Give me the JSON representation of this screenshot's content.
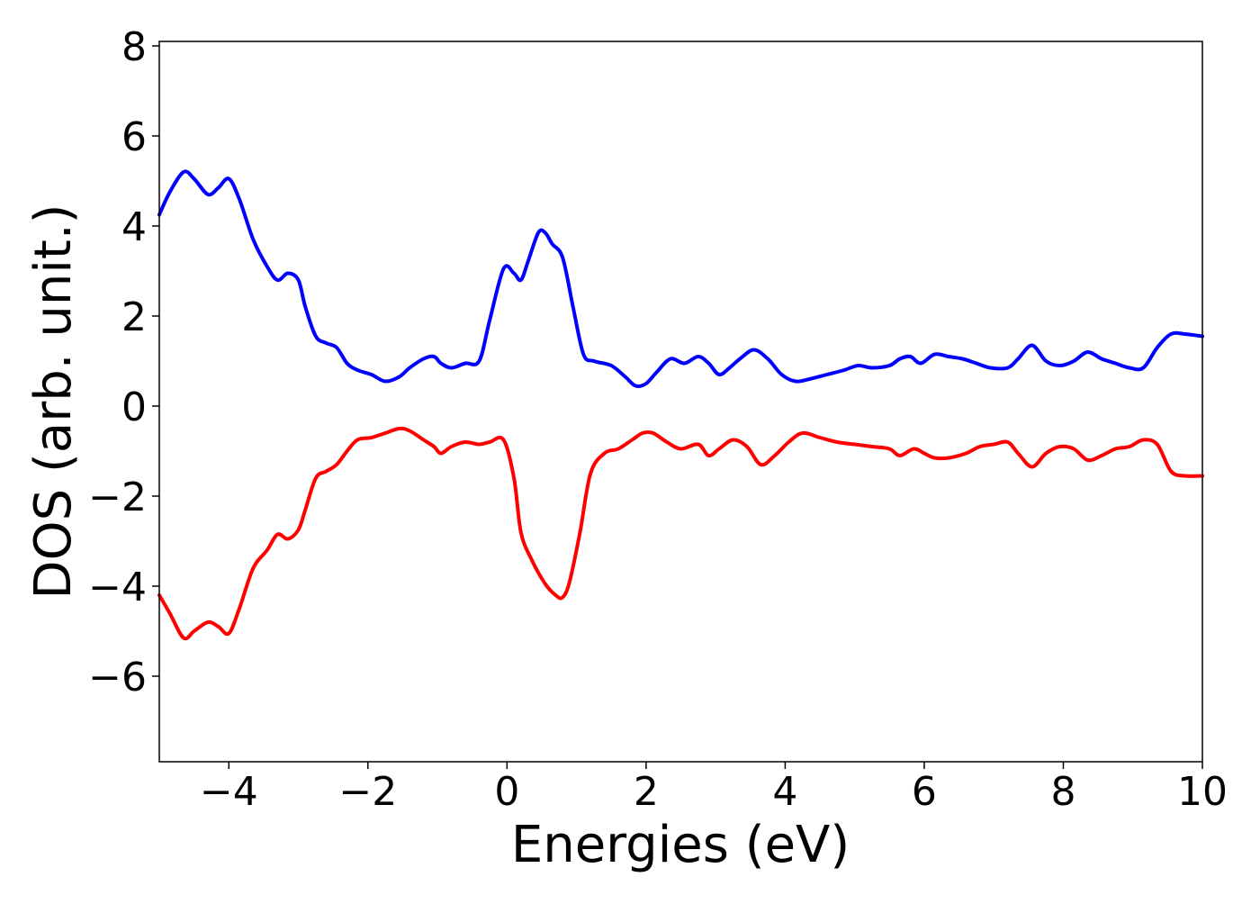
{
  "chart_data": {
    "type": "line",
    "title": "",
    "xlabel": "Energies (eV)",
    "ylabel": "DOS (arb. unit.)",
    "xlim": [
      -5,
      10
    ],
    "ylim": [
      -7.9,
      8.1
    ],
    "xticks": [
      -4,
      -2,
      0,
      2,
      4,
      6,
      8,
      10
    ],
    "yticks": [
      -6,
      -4,
      -2,
      0,
      2,
      4,
      6,
      8
    ],
    "xtick_labels": [
      "−4",
      "−2",
      "0",
      "2",
      "4",
      "6",
      "8",
      "10"
    ],
    "ytick_labels": [
      "−6",
      "−4",
      "−2",
      "0",
      "2",
      "4",
      "6",
      "8"
    ],
    "grid": false,
    "legend": "none",
    "series": [
      {
        "color": "#0000ff",
        "x": [
          -5.0,
          -4.85,
          -4.65,
          -4.5,
          -4.3,
          -4.15,
          -4.0,
          -3.85,
          -3.65,
          -3.45,
          -3.3,
          -3.15,
          -3.0,
          -2.9,
          -2.75,
          -2.6,
          -2.45,
          -2.3,
          -2.15,
          -1.95,
          -1.75,
          -1.55,
          -1.4,
          -1.2,
          -1.05,
          -0.95,
          -0.8,
          -0.6,
          -0.4,
          -0.25,
          -0.05,
          0.1,
          0.2,
          0.3,
          0.45,
          0.55,
          0.65,
          0.8,
          0.95,
          1.1,
          1.25,
          1.5,
          1.7,
          1.85,
          2.0,
          2.15,
          2.35,
          2.55,
          2.75,
          2.9,
          3.05,
          3.2,
          3.35,
          3.55,
          3.75,
          3.95,
          4.15,
          4.35,
          4.6,
          4.85,
          5.05,
          5.25,
          5.5,
          5.65,
          5.8,
          5.95,
          6.15,
          6.35,
          6.55,
          6.75,
          6.95,
          7.2,
          7.35,
          7.55,
          7.75,
          7.95,
          8.15,
          8.35,
          8.55,
          8.75,
          8.95,
          9.15,
          9.35,
          9.55,
          9.75,
          10.0
        ],
        "y": [
          4.25,
          4.75,
          5.2,
          5.05,
          4.7,
          4.85,
          5.05,
          4.6,
          3.7,
          3.1,
          2.8,
          2.95,
          2.8,
          2.2,
          1.55,
          1.4,
          1.3,
          0.95,
          0.8,
          0.7,
          0.55,
          0.65,
          0.85,
          1.05,
          1.1,
          0.95,
          0.85,
          0.95,
          1.0,
          1.9,
          3.05,
          2.95,
          2.8,
          3.2,
          3.85,
          3.85,
          3.6,
          3.3,
          2.2,
          1.15,
          1.0,
          0.9,
          0.65,
          0.45,
          0.5,
          0.75,
          1.05,
          0.95,
          1.1,
          0.95,
          0.7,
          0.85,
          1.05,
          1.25,
          1.05,
          0.7,
          0.55,
          0.6,
          0.7,
          0.8,
          0.9,
          0.85,
          0.9,
          1.05,
          1.1,
          0.95,
          1.15,
          1.1,
          1.05,
          0.95,
          0.85,
          0.85,
          1.05,
          1.35,
          1.0,
          0.9,
          1.0,
          1.2,
          1.05,
          0.95,
          0.85,
          0.85,
          1.3,
          1.6,
          1.6,
          1.55
        ]
      },
      {
        "color": "#ff0000",
        "x": [
          -5.0,
          -4.85,
          -4.65,
          -4.5,
          -4.3,
          -4.15,
          -4.0,
          -3.85,
          -3.65,
          -3.45,
          -3.3,
          -3.15,
          -3.0,
          -2.9,
          -2.75,
          -2.6,
          -2.45,
          -2.3,
          -2.15,
          -1.95,
          -1.75,
          -1.55,
          -1.4,
          -1.2,
          -1.05,
          -0.95,
          -0.8,
          -0.6,
          -0.4,
          -0.25,
          -0.05,
          0.1,
          0.2,
          0.35,
          0.55,
          0.7,
          0.8,
          0.9,
          1.05,
          1.2,
          1.4,
          1.6,
          1.8,
          1.95,
          2.1,
          2.3,
          2.5,
          2.75,
          2.9,
          3.05,
          3.25,
          3.45,
          3.65,
          3.85,
          4.05,
          4.25,
          4.5,
          4.75,
          5.0,
          5.25,
          5.5,
          5.65,
          5.85,
          6.0,
          6.15,
          6.35,
          6.6,
          6.8,
          7.0,
          7.2,
          7.35,
          7.55,
          7.75,
          7.95,
          8.15,
          8.35,
          8.55,
          8.75,
          8.95,
          9.15,
          9.35,
          9.55,
          9.75,
          10.0
        ],
        "y": [
          -4.2,
          -4.6,
          -5.15,
          -5.0,
          -4.8,
          -4.9,
          -5.05,
          -4.5,
          -3.6,
          -3.2,
          -2.85,
          -2.95,
          -2.75,
          -2.3,
          -1.6,
          -1.45,
          -1.3,
          -1.0,
          -0.75,
          -0.7,
          -0.6,
          -0.5,
          -0.55,
          -0.75,
          -0.9,
          -1.05,
          -0.9,
          -0.8,
          -0.85,
          -0.8,
          -0.75,
          -1.6,
          -2.8,
          -3.4,
          -3.95,
          -4.2,
          -4.25,
          -3.9,
          -2.8,
          -1.5,
          -1.05,
          -0.95,
          -0.75,
          -0.6,
          -0.6,
          -0.8,
          -0.95,
          -0.85,
          -1.1,
          -0.95,
          -0.75,
          -0.9,
          -1.3,
          -1.1,
          -0.8,
          -0.6,
          -0.7,
          -0.8,
          -0.85,
          -0.9,
          -0.95,
          -1.1,
          -0.95,
          -1.05,
          -1.15,
          -1.15,
          -1.05,
          -0.9,
          -0.85,
          -0.8,
          -1.05,
          -1.35,
          -1.05,
          -0.9,
          -0.95,
          -1.2,
          -1.1,
          -0.95,
          -0.9,
          -0.75,
          -0.85,
          -1.45,
          -1.55,
          -1.55
        ]
      }
    ]
  }
}
